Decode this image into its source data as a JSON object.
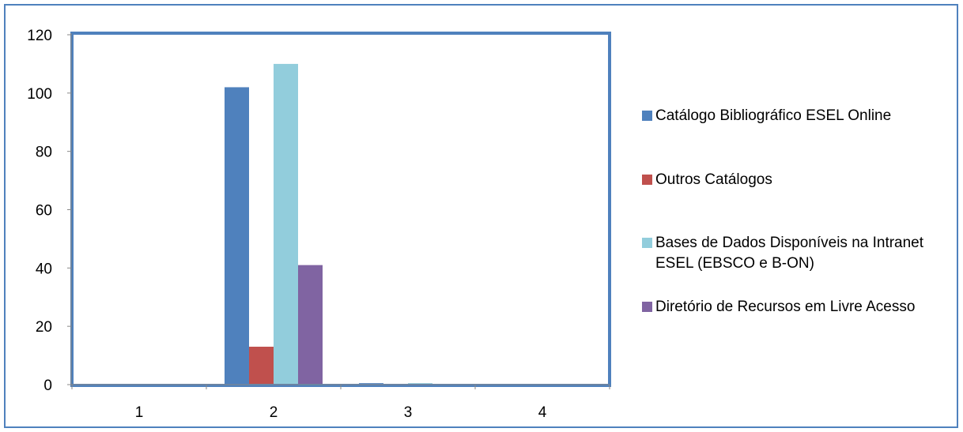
{
  "chart_data": {
    "type": "bar",
    "title": "",
    "xlabel": "",
    "ylabel": "",
    "categories": [
      "1",
      "2",
      "3",
      "4"
    ],
    "ylim": [
      0,
      120
    ],
    "yticks": [
      "0",
      "20",
      "40",
      "60",
      "80",
      "100",
      "120"
    ],
    "grid": false,
    "legend_position": "right",
    "series": [
      {
        "name": "Catálogo Bibliográfico ESEL Online",
        "color": "#4f81bd",
        "values": [
          0,
          102,
          0.5,
          0
        ]
      },
      {
        "name": "Outros Catálogos",
        "color": "#c0504d",
        "values": [
          0,
          13,
          0,
          0
        ]
      },
      {
        "name": "Bases de Dados Disponíveis na Intranet ESEL (EBSCO e B-ON)",
        "color": "#92cddc",
        "values": [
          0,
          110,
          0.5,
          0
        ]
      },
      {
        "name": "Diretório de Recursos em Livre Acesso",
        "color": "#8064a2",
        "values": [
          0,
          41,
          0,
          0
        ]
      }
    ],
    "colors": {
      "frame_border": "#4f81bd",
      "plot_border": "#4f81bd",
      "axis": "#878787"
    }
  }
}
